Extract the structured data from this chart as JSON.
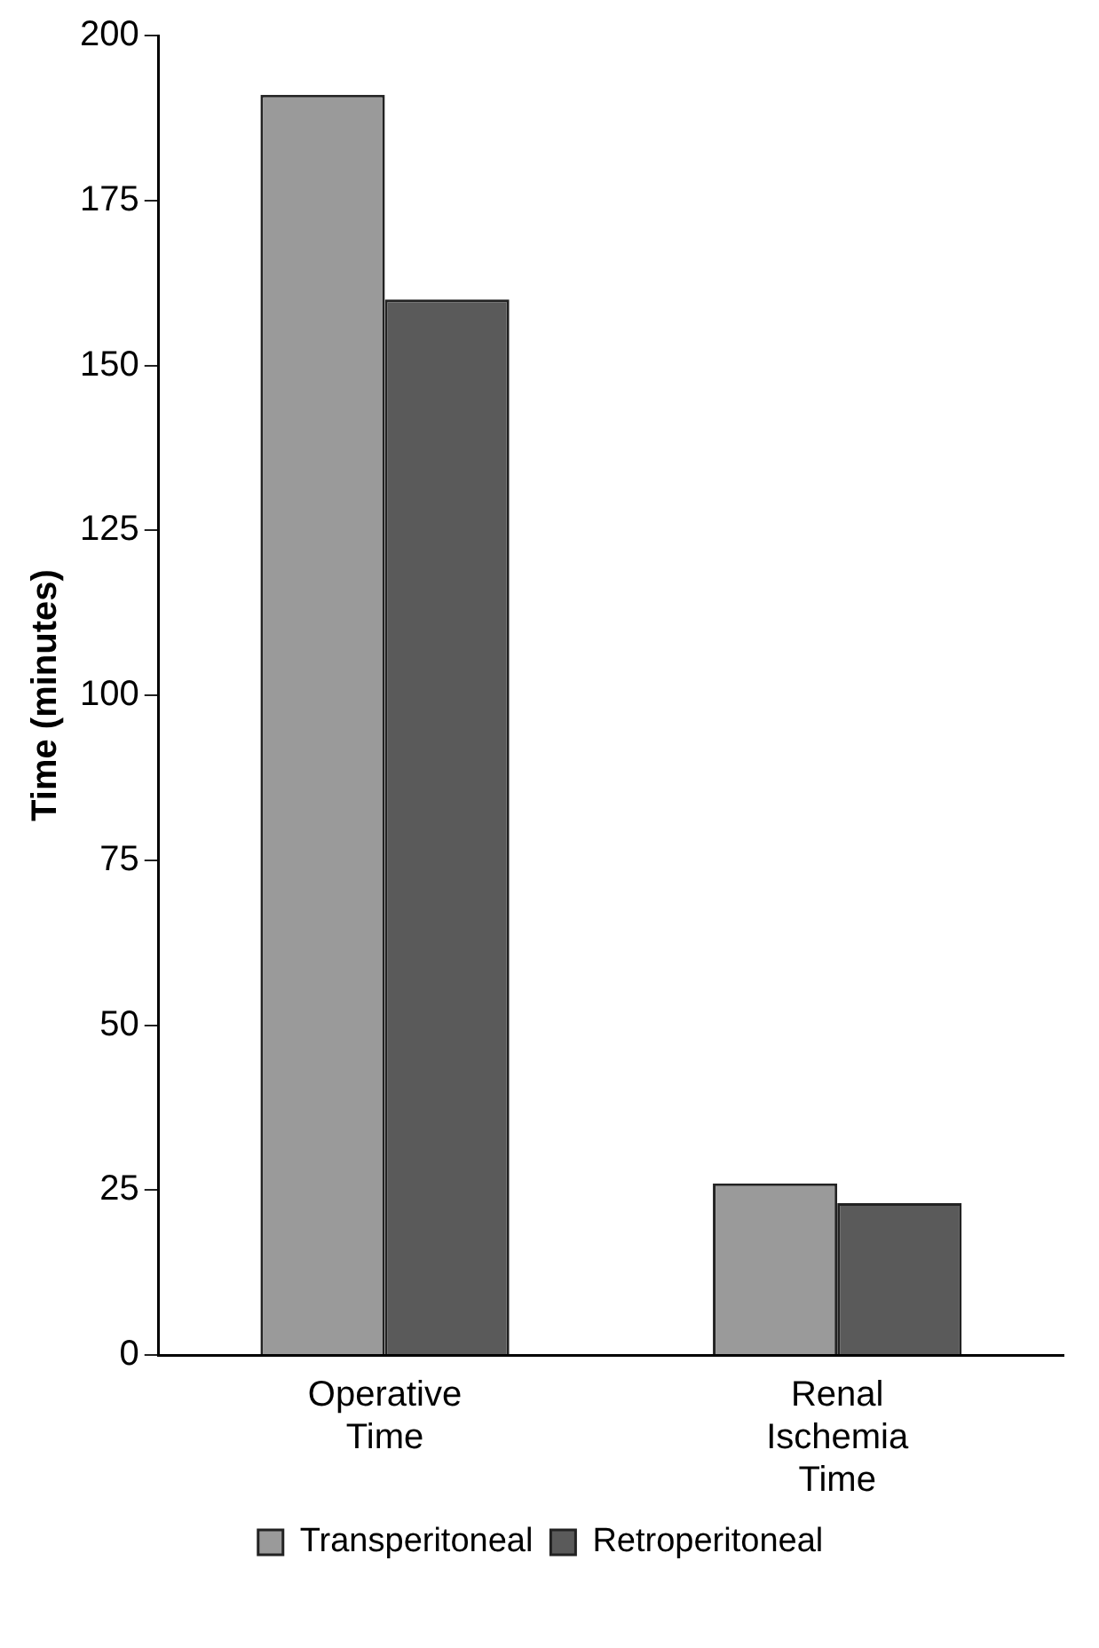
{
  "chart_data": {
    "type": "bar",
    "ylabel": "Time (minutes)",
    "categories": [
      "Operative Time",
      "Renal Ischemia Time"
    ],
    "series": [
      {
        "name": "Transperitoneal",
        "color": "#9a9a9a",
        "values": [
          191,
          26
        ]
      },
      {
        "name": "Retroperitoneal",
        "color": "#5a5a5a",
        "values": [
          160,
          23
        ]
      }
    ],
    "ylim": [
      0,
      200
    ],
    "yticks": [
      0,
      25,
      50,
      75,
      100,
      125,
      150,
      175,
      200
    ],
    "grid": false,
    "legend": "bottom"
  }
}
